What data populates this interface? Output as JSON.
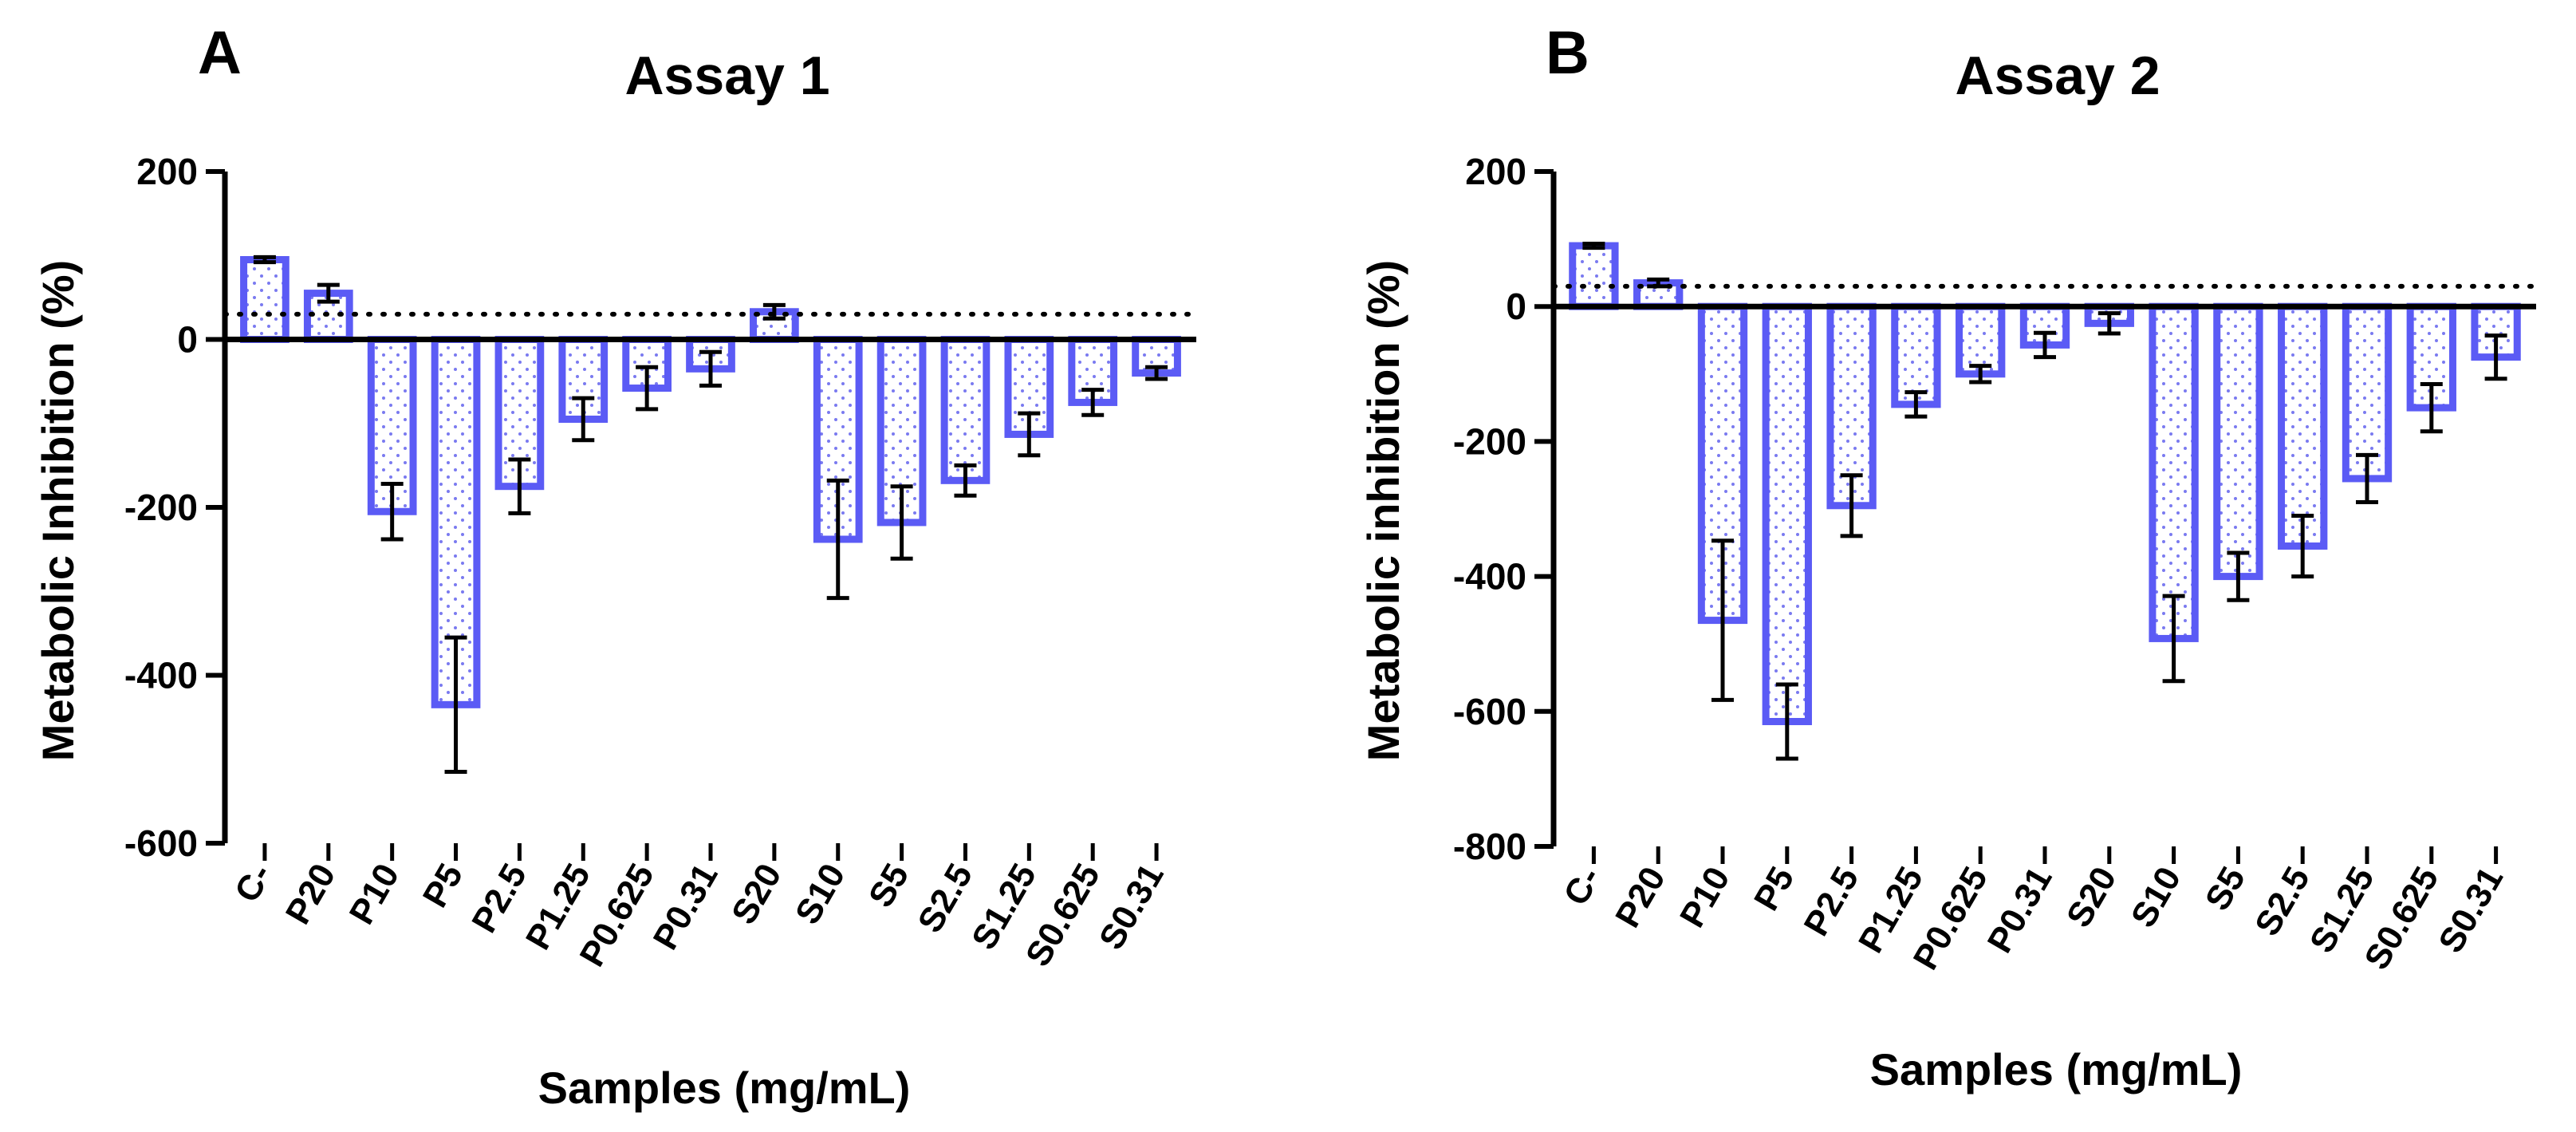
{
  "chart_data": [
    {
      "type": "bar",
      "panel_label": "A",
      "title": "Assay 1",
      "xlabel": "Samples (mg/mL)",
      "ylabel": "Metabolic Inhibition (%)",
      "ylim": [
        -600,
        200
      ],
      "yticks": [
        "200",
        "0",
        "-200",
        "-400",
        "-600"
      ],
      "reference_line": 30,
      "categories": [
        "C-",
        "P20",
        "P10",
        "P5",
        "P2.5",
        "P1.25",
        "P0.625",
        "P0.31",
        "S20",
        "S10",
        "S5",
        "S2.5",
        "S1.25",
        "S0.625",
        "S0.31"
      ],
      "values": [
        95,
        55,
        -205,
        -435,
        -175,
        -95,
        -58,
        -35,
        33,
        -238,
        -218,
        -168,
        -113,
        -75,
        -40
      ],
      "errors": [
        3,
        10,
        33,
        80,
        32,
        25,
        25,
        20,
        8,
        70,
        43,
        18,
        25,
        15,
        7
      ],
      "bar_color": "#5b5bf5"
    },
    {
      "type": "bar",
      "panel_label": "B",
      "title": "Assay 2",
      "xlabel": "Samples (mg/mL)",
      "ylabel": "Metabolic inhibition (%)",
      "ylim": [
        -800,
        200
      ],
      "yticks": [
        "200",
        "0",
        "-200",
        "-400",
        "-600",
        "-800"
      ],
      "reference_line": 30,
      "categories": [
        "C-",
        "P20",
        "P10",
        "P5",
        "P2.5",
        "P1.25",
        "P0.625",
        "P0.31",
        "S20",
        "S10",
        "S5",
        "S2.5",
        "S1.25",
        "S0.625",
        "S0.31"
      ],
      "values": [
        90,
        35,
        -465,
        -615,
        -295,
        -145,
        -100,
        -57,
        -25,
        -492,
        -400,
        -355,
        -255,
        -150,
        -75
      ],
      "errors": [
        3,
        5,
        118,
        55,
        45,
        18,
        12,
        18,
        15,
        63,
        35,
        45,
        35,
        35,
        32
      ],
      "bar_color": "#5b5bf5"
    }
  ]
}
